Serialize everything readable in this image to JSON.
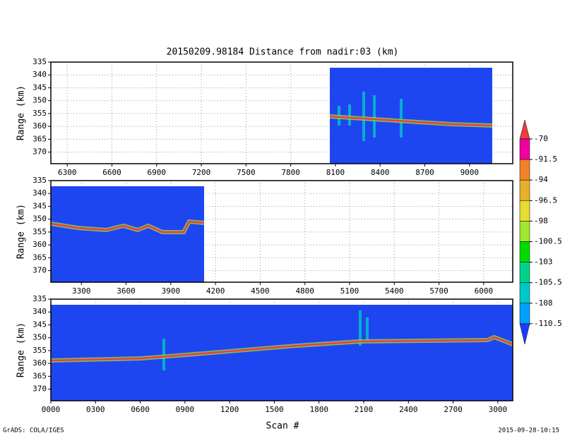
{
  "chart_data": [
    {
      "type": "heatmap",
      "title": "20150209.98184    Distance from nadir:03 (km)",
      "y_label": "Range (km)",
      "xlim": [
        6190,
        9290
      ],
      "xticks": [
        6300,
        6600,
        6900,
        7200,
        7500,
        7800,
        8100,
        8400,
        8700,
        9000
      ],
      "ylim": [
        374.5,
        335
      ],
      "yticks": [
        335,
        340,
        345,
        350,
        355,
        360,
        365,
        370
      ],
      "grid": true
    },
    {
      "type": "heatmap",
      "y_label": "Range (km)",
      "xlim": [
        3095,
        6195
      ],
      "xticks": [
        3300,
        3600,
        3900,
        4200,
        4500,
        4800,
        5100,
        5400,
        5700,
        6000
      ],
      "ylim": [
        374.5,
        335
      ],
      "yticks": [
        335,
        340,
        345,
        350,
        355,
        360,
        365,
        370
      ],
      "grid": true
    },
    {
      "type": "heatmap",
      "y_label": "Range (km)",
      "x_label": "Scan #",
      "xlim": [
        0,
        3100
      ],
      "xticks": [
        {
          "value": 0,
          "label": "0000"
        },
        {
          "value": 300,
          "label": "0300"
        },
        {
          "value": 600,
          "label": "0600"
        },
        {
          "value": 900,
          "label": "0900"
        },
        1200,
        1500,
        1800,
        2100,
        2400,
        2700,
        3000
      ],
      "ylim": [
        374.5,
        335
      ],
      "yticks": [
        335,
        340,
        345,
        350,
        355,
        360,
        365,
        370
      ],
      "grid": true
    }
  ],
  "colorbar": {
    "levels": [
      -70,
      -91.5,
      -94,
      -96.5,
      -98,
      -100.5,
      -103,
      -105.5,
      -108,
      -110.5
    ],
    "colors": [
      "#f03c3c",
      "#f000a0",
      "#f08228",
      "#e6af2d",
      "#e6dc32",
      "#a0e632",
      "#00dc00",
      "#00d28c",
      "#00c8c8",
      "#00a0ff",
      "#1e3cff"
    ]
  },
  "footer": {
    "left": "GrADS: COLA/IGES",
    "right": "2015-09-28-10:15"
  }
}
